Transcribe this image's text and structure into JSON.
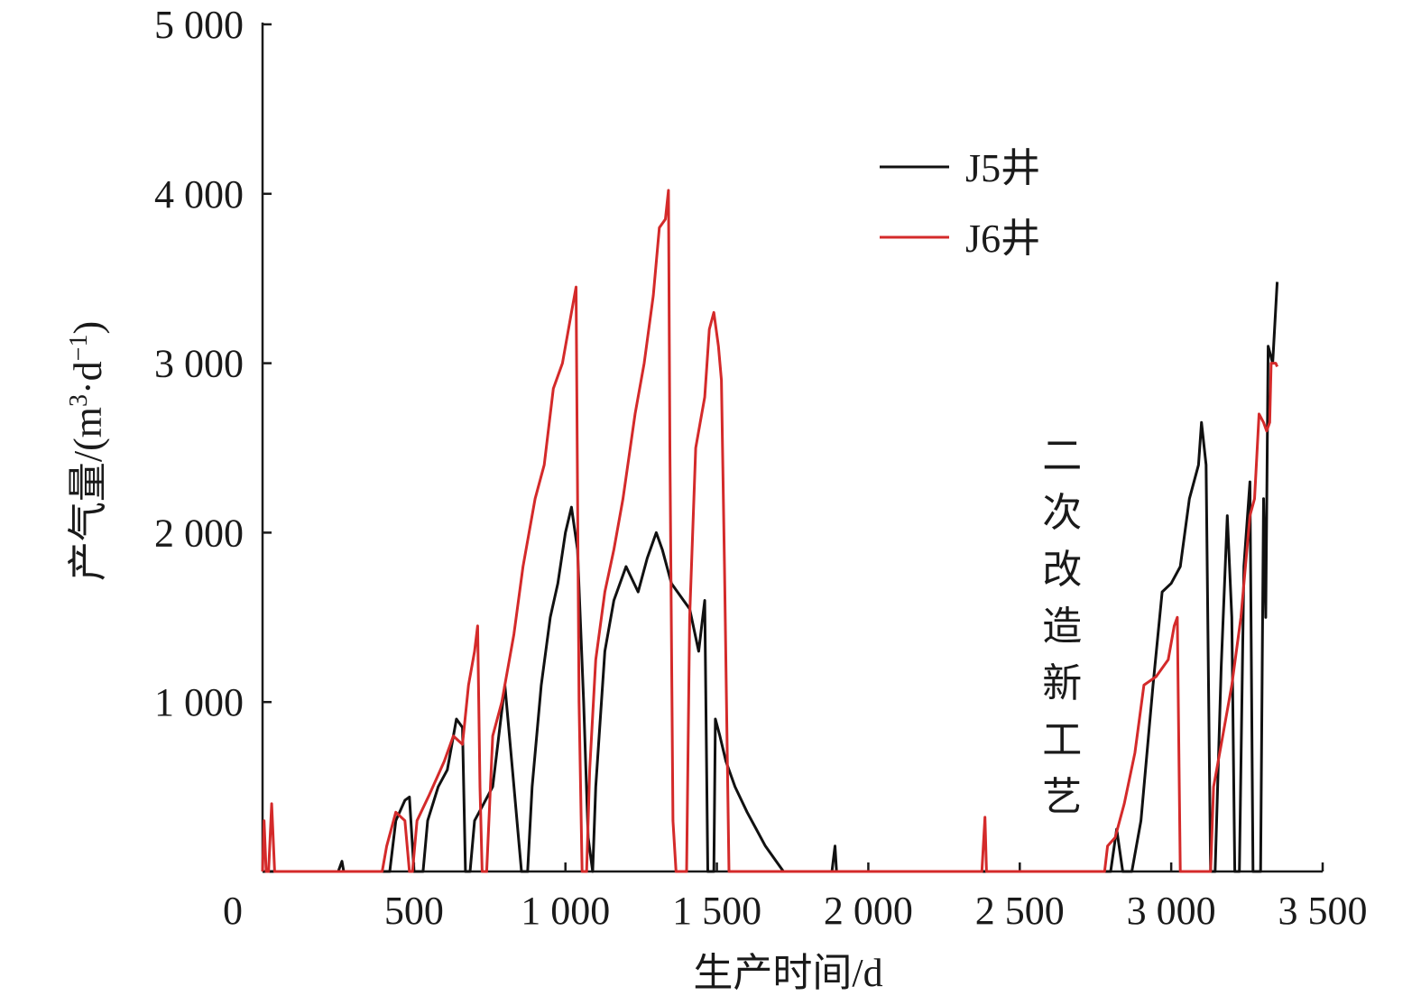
{
  "chart_data": {
    "type": "line",
    "xlabel": "生产时间/d",
    "ylabel": "产气量/(m³·d⁻¹)",
    "ylabel_parts": {
      "main": "产气量/(m",
      "sup1": "3",
      "mid": "·d",
      "sup2": "−1",
      "end": ")"
    },
    "xlim": [
      0,
      3500
    ],
    "ylim": [
      0,
      5000
    ],
    "x_ticks": [
      0,
      500,
      1000,
      1500,
      2000,
      2500,
      3000,
      3500
    ],
    "x_tick_labels": [
      "0",
      "500",
      "1 000",
      "1 500",
      "2 000",
      "2 500",
      "3 000",
      "3 500"
    ],
    "y_ticks": [
      1000,
      2000,
      3000,
      4000,
      5000
    ],
    "y_tick_labels": [
      "1 000",
      "2 000",
      "3 000",
      "4 000",
      "5 000"
    ],
    "grid": false,
    "legend_position": "top-center",
    "annotation": {
      "text": "二次改造新工艺",
      "x": 2640,
      "orientation": "vertical"
    },
    "series": [
      {
        "name": "J5井",
        "color": "#111111",
        "points": [
          [
            0,
            0
          ],
          [
            250,
            0
          ],
          [
            262,
            60
          ],
          [
            268,
            0
          ],
          [
            420,
            0
          ],
          [
            440,
            300
          ],
          [
            470,
            420
          ],
          [
            485,
            440
          ],
          [
            500,
            0
          ],
          [
            530,
            0
          ],
          [
            545,
            300
          ],
          [
            580,
            500
          ],
          [
            610,
            600
          ],
          [
            640,
            900
          ],
          [
            660,
            850
          ],
          [
            670,
            0
          ],
          [
            685,
            0
          ],
          [
            700,
            300
          ],
          [
            730,
            400
          ],
          [
            760,
            500
          ],
          [
            800,
            1100
          ],
          [
            825,
            600
          ],
          [
            855,
            0
          ],
          [
            875,
            0
          ],
          [
            890,
            500
          ],
          [
            920,
            1100
          ],
          [
            950,
            1500
          ],
          [
            975,
            1700
          ],
          [
            1000,
            2000
          ],
          [
            1020,
            2150
          ],
          [
            1040,
            1900
          ],
          [
            1060,
            1000
          ],
          [
            1075,
            200
          ],
          [
            1090,
            0
          ],
          [
            1100,
            500
          ],
          [
            1130,
            1300
          ],
          [
            1160,
            1600
          ],
          [
            1200,
            1800
          ],
          [
            1240,
            1650
          ],
          [
            1270,
            1850
          ],
          [
            1300,
            2000
          ],
          [
            1320,
            1900
          ],
          [
            1350,
            1700
          ],
          [
            1390,
            1600
          ],
          [
            1410,
            1550
          ],
          [
            1440,
            1300
          ],
          [
            1460,
            1600
          ],
          [
            1470,
            0
          ],
          [
            1490,
            0
          ],
          [
            1495,
            900
          ],
          [
            1510,
            800
          ],
          [
            1530,
            650
          ],
          [
            1560,
            500
          ],
          [
            1600,
            350
          ],
          [
            1630,
            250
          ],
          [
            1660,
            150
          ],
          [
            1700,
            50
          ],
          [
            1720,
            0
          ],
          [
            1880,
            0
          ],
          [
            1890,
            150
          ],
          [
            1895,
            0
          ],
          [
            2800,
            0
          ],
          [
            2820,
            250
          ],
          [
            2840,
            0
          ],
          [
            2870,
            0
          ],
          [
            2900,
            300
          ],
          [
            2940,
            1100
          ],
          [
            2970,
            1650
          ],
          [
            3000,
            1700
          ],
          [
            3030,
            1800
          ],
          [
            3060,
            2200
          ],
          [
            3090,
            2400
          ],
          [
            3100,
            2650
          ],
          [
            3115,
            2400
          ],
          [
            3130,
            0
          ],
          [
            3145,
            0
          ],
          [
            3165,
            1200
          ],
          [
            3185,
            2100
          ],
          [
            3200,
            1500
          ],
          [
            3210,
            0
          ],
          [
            3225,
            0
          ],
          [
            3240,
            1800
          ],
          [
            3260,
            2300
          ],
          [
            3270,
            0
          ],
          [
            3295,
            0
          ],
          [
            3305,
            2200
          ],
          [
            3312,
            1500
          ],
          [
            3320,
            3100
          ],
          [
            3335,
            3000
          ],
          [
            3350,
            3480
          ]
        ]
      },
      {
        "name": "J6井",
        "color": "#d42a2a",
        "points": [
          [
            0,
            0
          ],
          [
            5,
            300
          ],
          [
            12,
            0
          ],
          [
            20,
            0
          ],
          [
            30,
            400
          ],
          [
            40,
            0
          ],
          [
            395,
            0
          ],
          [
            410,
            150
          ],
          [
            440,
            350
          ],
          [
            470,
            300
          ],
          [
            485,
            0
          ],
          [
            495,
            0
          ],
          [
            510,
            300
          ],
          [
            550,
            450
          ],
          [
            600,
            650
          ],
          [
            630,
            800
          ],
          [
            660,
            750
          ],
          [
            680,
            1100
          ],
          [
            700,
            1300
          ],
          [
            710,
            1450
          ],
          [
            718,
            500
          ],
          [
            725,
            0
          ],
          [
            740,
            0
          ],
          [
            760,
            800
          ],
          [
            790,
            1000
          ],
          [
            830,
            1400
          ],
          [
            860,
            1800
          ],
          [
            900,
            2200
          ],
          [
            930,
            2400
          ],
          [
            960,
            2850
          ],
          [
            990,
            3000
          ],
          [
            1020,
            3300
          ],
          [
            1035,
            3450
          ],
          [
            1045,
            1000
          ],
          [
            1055,
            0
          ],
          [
            1070,
            0
          ],
          [
            1080,
            600
          ],
          [
            1100,
            1250
          ],
          [
            1130,
            1650
          ],
          [
            1160,
            1900
          ],
          [
            1190,
            2200
          ],
          [
            1230,
            2700
          ],
          [
            1260,
            3000
          ],
          [
            1290,
            3400
          ],
          [
            1310,
            3800
          ],
          [
            1330,
            3850
          ],
          [
            1340,
            4020
          ],
          [
            1345,
            2500
          ],
          [
            1355,
            300
          ],
          [
            1365,
            0
          ],
          [
            1400,
            0
          ],
          [
            1410,
            1500
          ],
          [
            1430,
            2500
          ],
          [
            1445,
            2650
          ],
          [
            1460,
            2800
          ],
          [
            1475,
            3200
          ],
          [
            1490,
            3300
          ],
          [
            1505,
            3100
          ],
          [
            1515,
            2900
          ],
          [
            1525,
            1800
          ],
          [
            1540,
            0
          ],
          [
            2375,
            0
          ],
          [
            2385,
            320
          ],
          [
            2390,
            0
          ],
          [
            2780,
            0
          ],
          [
            2790,
            150
          ],
          [
            2815,
            200
          ],
          [
            2845,
            400
          ],
          [
            2880,
            700
          ],
          [
            2910,
            1100
          ],
          [
            2950,
            1150
          ],
          [
            2990,
            1250
          ],
          [
            3010,
            1450
          ],
          [
            3020,
            1500
          ],
          [
            3030,
            0
          ],
          [
            3130,
            0
          ],
          [
            3140,
            500
          ],
          [
            3160,
            700
          ],
          [
            3180,
            900
          ],
          [
            3200,
            1100
          ],
          [
            3230,
            1500
          ],
          [
            3245,
            1800
          ],
          [
            3260,
            2100
          ],
          [
            3275,
            2200
          ],
          [
            3290,
            2700
          ],
          [
            3305,
            2650
          ],
          [
            3315,
            2600
          ],
          [
            3325,
            2650
          ],
          [
            3330,
            3000
          ],
          [
            3345,
            3000
          ],
          [
            3350,
            2980
          ]
        ]
      }
    ]
  }
}
